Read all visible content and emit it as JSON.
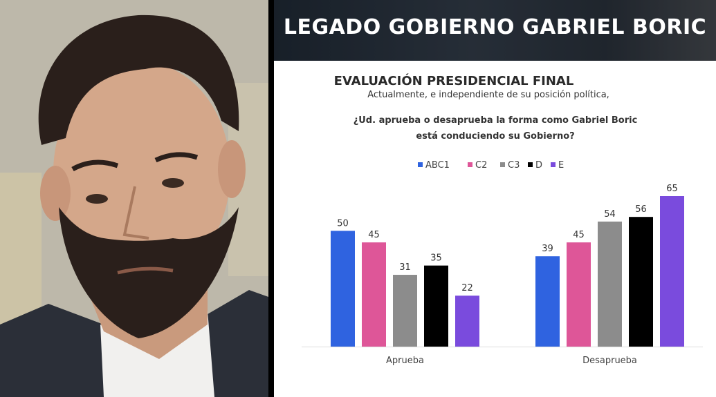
{
  "banner": {
    "title": "LEGADO GOBIERNO GABRIEL BORIC"
  },
  "chart_data": {
    "type": "bar",
    "title": "EVALUACIÓN PRESIDENCIAL FINAL",
    "subtitle": "Actualmente, e independiente de su posición política,",
    "question_line1": "¿Ud. aprueba o desaprueba la forma como Gabriel Boric",
    "question_line2": "está conduciendo su Gobierno?",
    "categories": [
      "Aprueba",
      "Desaprueba"
    ],
    "series": [
      {
        "name": "ABC1",
        "color": "#2f63e0",
        "values": [
          50,
          39
        ]
      },
      {
        "name": "C2",
        "color": "#de5698",
        "values": [
          45,
          45
        ]
      },
      {
        "name": "C3",
        "color": "#8c8c8c",
        "values": [
          31,
          54
        ]
      },
      {
        "name": "D",
        "color": "#000000",
        "values": [
          35,
          56
        ]
      },
      {
        "name": "E",
        "color": "#7a4bdd",
        "values": [
          22,
          65
        ]
      }
    ],
    "ylim": [
      0,
      65
    ],
    "grid": false,
    "legend": "top"
  }
}
